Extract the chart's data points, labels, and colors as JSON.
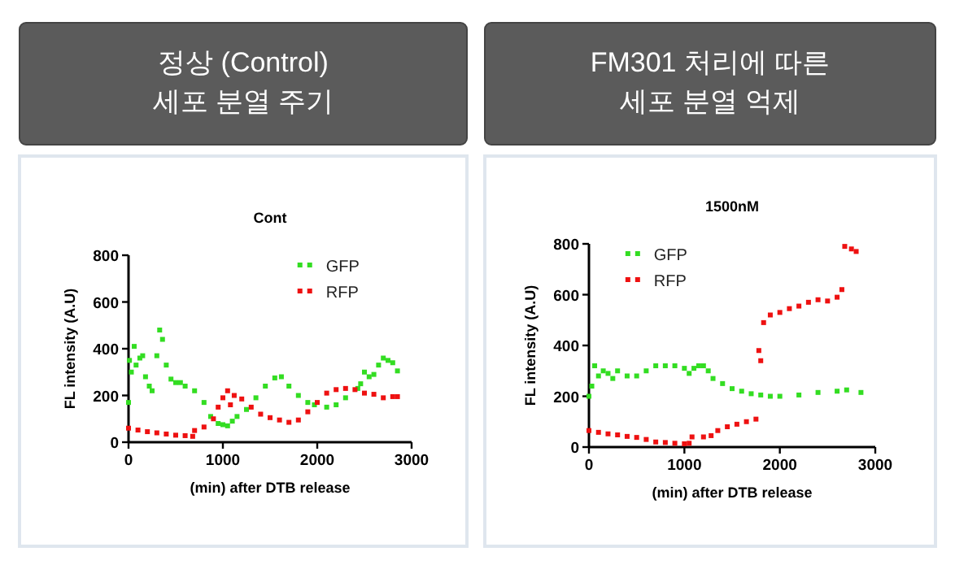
{
  "chart_data": [
    {
      "type": "scatter",
      "title": "정상 (Control)\n세포 분열 주기",
      "subtitle": "Cont",
      "xlabel": "(min) after DTB release",
      "ylabel": "FL intensity (A.U)",
      "xlim": [
        0,
        3000
      ],
      "xticks": [
        0,
        1000,
        2000,
        3000
      ],
      "ylim": [
        0,
        800
      ],
      "yticks": [
        0,
        200,
        400,
        600,
        800
      ],
      "legend": "top right",
      "marker": "square",
      "series": [
        {
          "name": "GFP",
          "color": "#33dd22",
          "x": [
            0,
            10,
            30,
            60,
            80,
            120,
            150,
            180,
            220,
            250,
            300,
            330,
            360,
            400,
            450,
            500,
            550,
            600,
            700,
            800,
            870,
            950,
            1000,
            1050,
            1100,
            1150,
            1250,
            1350,
            1450,
            1550,
            1620,
            1700,
            1800,
            1900,
            1970,
            2100,
            2200,
            2300,
            2430,
            2460,
            2500,
            2550,
            2600,
            2650,
            2700,
            2750,
            2800,
            2850
          ],
          "values": [
            170,
            350,
            300,
            410,
            330,
            360,
            370,
            280,
            240,
            220,
            370,
            480,
            440,
            330,
            270,
            255,
            255,
            240,
            220,
            170,
            110,
            80,
            75,
            70,
            90,
            110,
            140,
            190,
            240,
            275,
            280,
            240,
            200,
            170,
            160,
            150,
            160,
            190,
            230,
            250,
            300,
            280,
            290,
            330,
            360,
            350,
            340,
            305
          ]
        },
        {
          "name": "RFP",
          "color": "#ee1111",
          "x": [
            0,
            100,
            200,
            300,
            400,
            500,
            600,
            680,
            700,
            800,
            900,
            950,
            1000,
            1050,
            1080,
            1120,
            1200,
            1300,
            1400,
            1500,
            1600,
            1700,
            1800,
            1900,
            2000,
            2100,
            2200,
            2300,
            2400,
            2500,
            2600,
            2700,
            2800,
            2850
          ],
          "values": [
            60,
            52,
            45,
            40,
            35,
            30,
            28,
            25,
            50,
            65,
            100,
            150,
            190,
            220,
            160,
            200,
            185,
            150,
            120,
            105,
            95,
            85,
            95,
            130,
            170,
            210,
            225,
            230,
            225,
            210,
            205,
            190,
            195,
            195
          ]
        }
      ]
    },
    {
      "type": "scatter",
      "title": "FM301 처리에 따른\n세포 분열 억제",
      "subtitle": "1500nM",
      "xlabel": "(min) after DTB release",
      "ylabel": "FL intensity (A.U)",
      "xlim": [
        0,
        3000
      ],
      "xticks": [
        0,
        1000,
        2000,
        3000
      ],
      "ylim": [
        0,
        800
      ],
      "yticks": [
        0,
        200,
        400,
        600,
        800
      ],
      "legend": "top left",
      "marker": "square",
      "series": [
        {
          "name": "GFP",
          "color": "#33dd22",
          "x": [
            0,
            30,
            60,
            100,
            150,
            200,
            250,
            300,
            400,
            500,
            600,
            700,
            800,
            900,
            1000,
            1050,
            1100,
            1150,
            1200,
            1250,
            1300,
            1400,
            1500,
            1600,
            1700,
            1800,
            1900,
            2000,
            2200,
            2400,
            2600,
            2700,
            2850
          ],
          "values": [
            200,
            240,
            320,
            280,
            300,
            290,
            270,
            300,
            280,
            280,
            300,
            320,
            320,
            320,
            310,
            290,
            310,
            320,
            320,
            300,
            270,
            250,
            230,
            220,
            210,
            205,
            200,
            200,
            205,
            215,
            220,
            225,
            215
          ]
        },
        {
          "name": "RFP",
          "color": "#ee1111",
          "x": [
            0,
            100,
            200,
            300,
            400,
            500,
            600,
            700,
            800,
            900,
            1000,
            1050,
            1080,
            1200,
            1280,
            1350,
            1450,
            1550,
            1650,
            1750,
            1780,
            1800,
            1830,
            1900,
            2000,
            2100,
            2200,
            2300,
            2400,
            2500,
            2600,
            2650,
            2680,
            2750,
            2800
          ],
          "values": [
            65,
            58,
            52,
            48,
            42,
            38,
            30,
            20,
            18,
            15,
            13,
            15,
            40,
            40,
            45,
            65,
            80,
            90,
            100,
            110,
            380,
            340,
            490,
            520,
            530,
            545,
            555,
            570,
            580,
            575,
            590,
            620,
            790,
            780,
            770
          ]
        }
      ]
    }
  ]
}
